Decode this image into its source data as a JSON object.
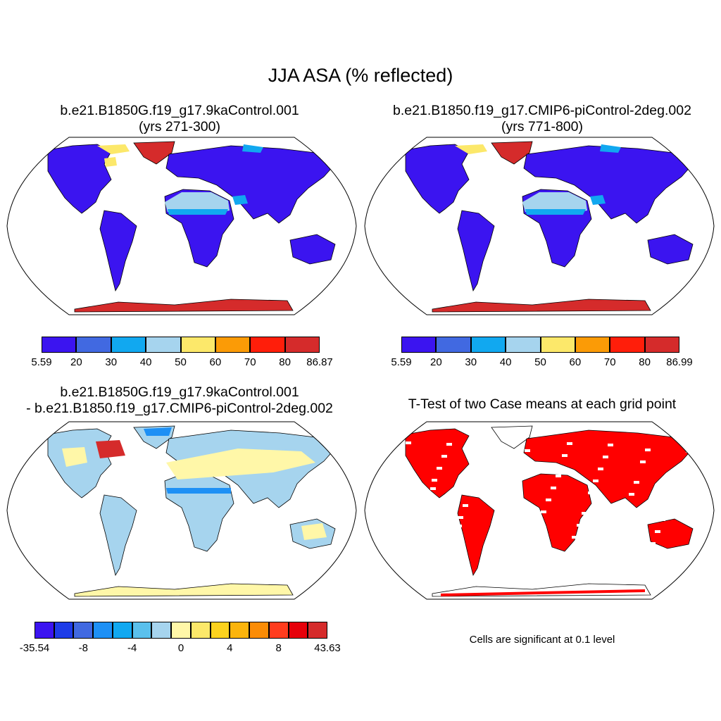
{
  "title": "JJA ASA (% reflected)",
  "panels": [
    {
      "id": "case1",
      "title_line1": "b.e21.B1850G.f19_g17.9kaControl.001",
      "title_line2": "(yrs 271-300)",
      "colorbar": {
        "tick_labels": [
          "5.59",
          "20",
          "30",
          "40",
          "50",
          "60",
          "70",
          "80",
          "86.87"
        ],
        "colors": [
          "#3b14f0",
          "#4169e1",
          "#11a8f0",
          "#a6d4ee",
          "#fce86a",
          "#fb9b06",
          "#ff1e0a",
          "#d52b2b"
        ]
      }
    },
    {
      "id": "case2",
      "title_line1": "b.e21.B1850.f19_g17.CMIP6-piControl-2deg.002",
      "title_line2": "(yrs 771-800)",
      "colorbar": {
        "tick_labels": [
          "5.59",
          "20",
          "30",
          "40",
          "50",
          "60",
          "70",
          "80",
          "86.99"
        ],
        "colors": [
          "#3b14f0",
          "#4169e1",
          "#11a8f0",
          "#a6d4ee",
          "#fce86a",
          "#fb9b06",
          "#ff1e0a",
          "#d52b2b"
        ]
      }
    },
    {
      "id": "diff",
      "title_line1": "b.e21.B1850G.f19_g17.9kaControl.001",
      "title_line2": "- b.e21.B1850.f19_g17.CMIP6-piControl-2deg.002",
      "colorbar": {
        "tick_labels": [
          "-35.54",
          "-8",
          "-4",
          "0",
          "4",
          "8",
          "43.63"
        ],
        "colors": [
          "#3b14f0",
          "#1e3ce8",
          "#4169e1",
          "#1e90f5",
          "#11a8f0",
          "#5ac0ec",
          "#a6d4ee",
          "#fff7a8",
          "#fce86a",
          "#fcd21e",
          "#fbb40c",
          "#fb8c06",
          "#ff3c1e",
          "#e6000a",
          "#d52b2b"
        ]
      }
    },
    {
      "id": "ttest",
      "title_line1": "T-Test of two Case means at each grid point",
      "note": "Cells are significant at 0.1 level"
    }
  ],
  "map_colors": {
    "land_low": "#3b14f0",
    "desert": "#a6d4ee",
    "desert_edge": "#11a8f0",
    "antarctica": "#d52b2b",
    "greenland": "#d52b2b",
    "arctic_yellow": "#fce86a",
    "diff_land": "#a6d4ee",
    "diff_pos": "#fff7a8",
    "diff_neg": "#1e90f5",
    "signif": "#ff0000"
  }
}
